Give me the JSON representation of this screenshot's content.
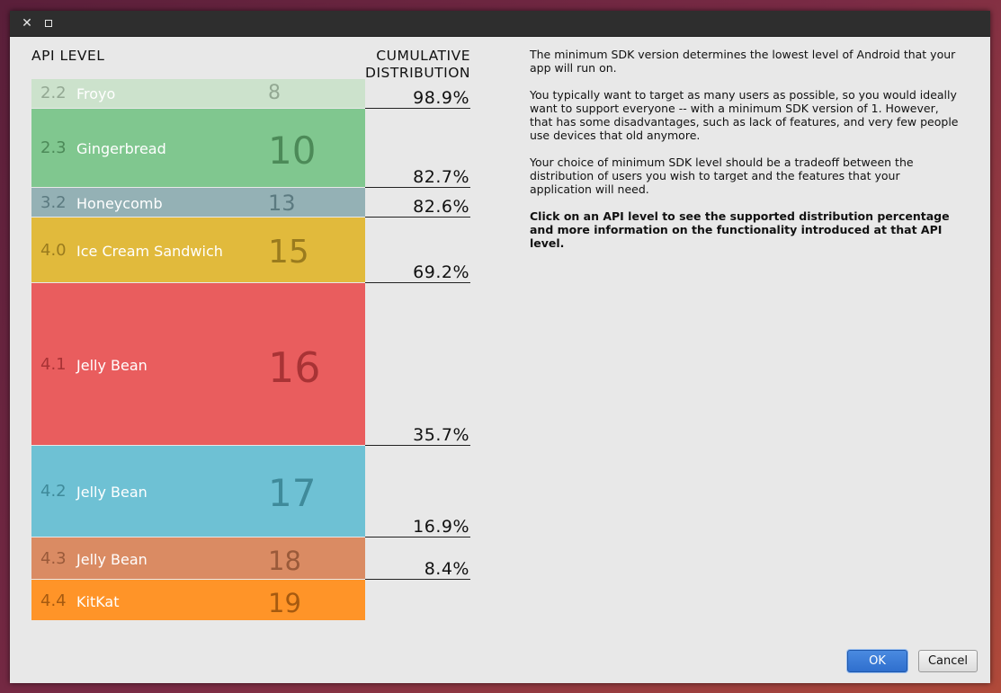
{
  "window": {
    "close_symbol": "✕",
    "maximize_icon": "maximize-icon"
  },
  "headers": {
    "api_level": "API LEVEL",
    "cumulative_line1": "CUMULATIVE",
    "cumulative_line2": "DISTRIBUTION"
  },
  "levels": [
    {
      "version": "2.2",
      "name": "Froyo",
      "api": "8",
      "cumulative": "98.9%",
      "color": "#cce2cc"
    },
    {
      "version": "2.3",
      "name": "Gingerbread",
      "api": "10",
      "cumulative": "82.7%",
      "color": "#80c78f"
    },
    {
      "version": "3.2",
      "name": "Honeycomb",
      "api": "13",
      "cumulative": "82.6%",
      "color": "#94b1b5"
    },
    {
      "version": "4.0",
      "name": "Ice Cream Sandwich",
      "api": "15",
      "cumulative": "69.2%",
      "color": "#e1ba3c"
    },
    {
      "version": "4.1",
      "name": "Jelly Bean",
      "api": "16",
      "cumulative": "35.7%",
      "color": "#e95d5e"
    },
    {
      "version": "4.2",
      "name": "Jelly Bean",
      "api": "17",
      "cumulative": "16.9%",
      "color": "#6ec1d4"
    },
    {
      "version": "4.3",
      "name": "Jelly Bean",
      "api": "18",
      "cumulative": "8.4%",
      "color": "#da8b63"
    },
    {
      "version": "4.4",
      "name": "KitKat",
      "api": "19",
      "cumulative": "",
      "color": "#ff9428"
    }
  ],
  "description": {
    "p1": "The minimum SDK version determines the lowest level of Android that your app will run on.",
    "p2": "You typically want to target as many users as possible, so you would ideally want to support everyone -- with a minimum SDK version of 1. However, that has some disadvantages, such as lack of features, and very few people use devices that old anymore.",
    "p3": "Your choice of minimum SDK level should be a tradeoff between the distribution of users you wish to target and the features that your application will need.",
    "p4": "Click on an API level to see the supported distribution percentage and more information on the functionality introduced at that API level."
  },
  "buttons": {
    "ok": "OK",
    "cancel": "Cancel"
  }
}
